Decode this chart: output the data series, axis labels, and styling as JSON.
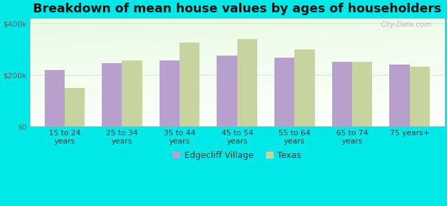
{
  "title": "Breakdown of mean house values by ages of householders",
  "categories": [
    "15 to 24\nyears",
    "25 to 34\nyears",
    "35 to 44\nyears",
    "45 to 54\nyears",
    "55 to 64\nyears",
    "65 to 74\nyears",
    "75 years+"
  ],
  "edgecliff_values": [
    220000,
    245000,
    255000,
    275000,
    268000,
    250000,
    240000
  ],
  "texas_values": [
    150000,
    255000,
    325000,
    338000,
    300000,
    252000,
    232000
  ],
  "edgecliff_color": "#b8a0cc",
  "texas_color": "#c8d4a0",
  "yticks": [
    0,
    200000,
    400000
  ],
  "ytick_labels": [
    "$0",
    "$200k",
    "$400k"
  ],
  "ylim": [
    0,
    420000
  ],
  "legend_edgecliff": "Edgecliff Village",
  "legend_texas": "Texas",
  "outer_bg": "#00e8e8",
  "title_fontsize": 13,
  "tick_fontsize": 8,
  "legend_fontsize": 9,
  "bar_width": 0.35,
  "watermark": "City-Data.com",
  "grid_color": "#dddddd"
}
